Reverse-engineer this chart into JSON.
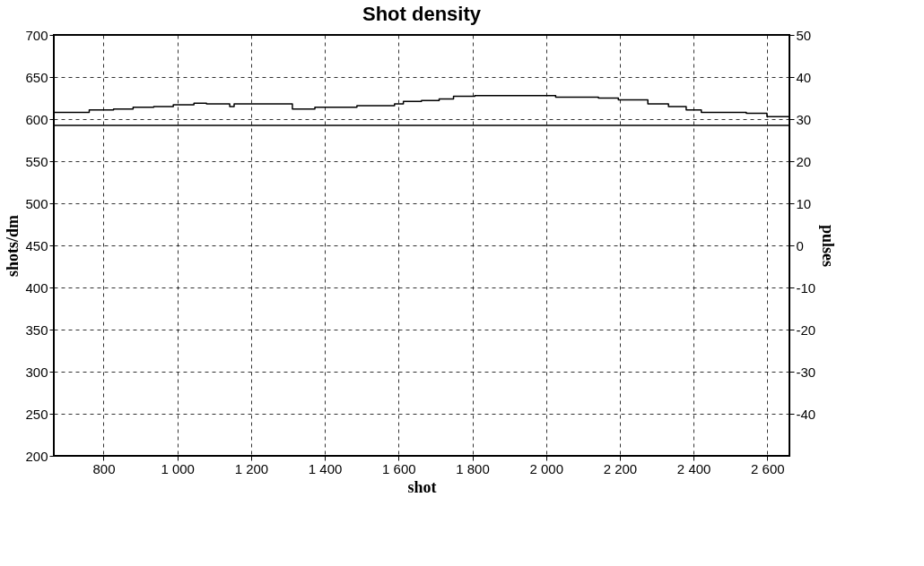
{
  "chart_data": {
    "type": "step",
    "title": "Shot density",
    "xlabel": "shot",
    "ylabel": "shots/dm",
    "y2label": "pulses",
    "xlim": [
      665,
      2660
    ],
    "xticks": [
      800,
      {
        "value": 1000,
        "label": "1 000"
      },
      {
        "value": 1200,
        "label": "1 200"
      },
      {
        "value": 1400,
        "label": "1 400"
      },
      {
        "value": 1600,
        "label": "1 600"
      },
      {
        "value": 1800,
        "label": "1 800"
      },
      {
        "value": 2000,
        "label": "2 000"
      },
      {
        "value": 2200,
        "label": "2 200"
      },
      {
        "value": 2400,
        "label": "2 400"
      },
      {
        "value": 2600,
        "label": "2 600"
      }
    ],
    "ylim": [
      200,
      700
    ],
    "yticks": [
      200,
      250,
      300,
      350,
      400,
      450,
      500,
      550,
      600,
      650,
      700
    ],
    "y2lim": [
      -50,
      50
    ],
    "y2ticks": [
      -40,
      -30,
      -20,
      -10,
      0,
      10,
      20,
      30,
      40,
      50
    ],
    "grid": true,
    "line_style": "solid",
    "marker": "none",
    "series": [
      {
        "color": "#000000",
        "x": [
          665,
          761,
          827,
          880,
          936,
          989,
          1045,
          1079,
          1142,
          1154,
          1312,
          1373,
          1487,
          1589,
          1613,
          1662,
          1710,
          1749,
          1807,
          2026,
          2142,
          2196,
          2276,
          2332,
          2380,
          2421,
          2543,
          2599,
          2660
        ],
        "values": [
          608,
          611,
          612,
          614,
          615,
          617,
          619,
          618,
          615,
          618,
          612,
          614,
          616,
          618,
          621,
          622,
          624,
          627,
          628,
          626,
          625,
          623,
          618,
          615,
          611,
          608,
          607,
          603,
          603
        ]
      },
      {
        "type": "line",
        "axis": "y2",
        "color": "#000000",
        "x": [
          665,
          2660
        ],
        "values": [
          28.5,
          28.5
        ]
      }
    ]
  }
}
